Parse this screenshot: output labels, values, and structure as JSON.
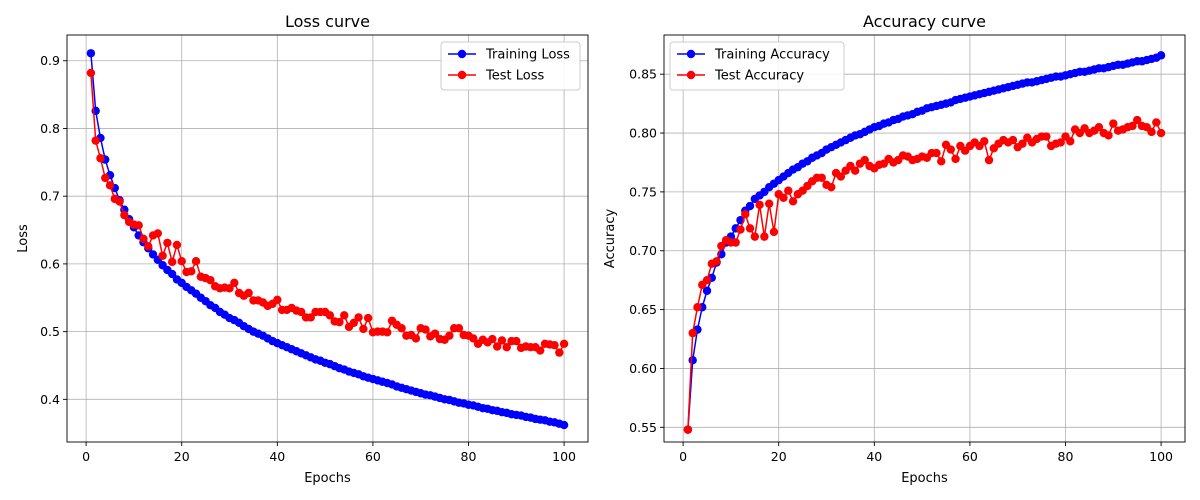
{
  "chart_data": [
    {
      "type": "line",
      "title": "Loss curve",
      "xlabel": "Epochs",
      "ylabel": "Loss",
      "xlim": [
        -4,
        105
      ],
      "ylim": [
        0.337,
        0.938
      ],
      "xticks": [
        0,
        20,
        40,
        60,
        80,
        100
      ],
      "yticks": [
        0.4,
        0.5,
        0.6,
        0.7,
        0.8,
        0.9
      ],
      "ytick_decimals": 1,
      "grid": true,
      "legend": "top-right",
      "x": [
        1,
        2,
        3,
        4,
        5,
        6,
        7,
        8,
        9,
        10,
        11,
        12,
        13,
        14,
        15,
        16,
        17,
        18,
        19,
        20,
        21,
        22,
        23,
        24,
        25,
        26,
        27,
        28,
        29,
        30,
        31,
        32,
        33,
        34,
        35,
        36,
        37,
        38,
        39,
        40,
        41,
        42,
        43,
        44,
        45,
        46,
        47,
        48,
        49,
        50,
        51,
        52,
        53,
        54,
        55,
        56,
        57,
        58,
        59,
        60,
        61,
        62,
        63,
        64,
        65,
        66,
        67,
        68,
        69,
        70,
        71,
        72,
        73,
        74,
        75,
        76,
        77,
        78,
        79,
        80,
        81,
        82,
        83,
        84,
        85,
        86,
        87,
        88,
        89,
        90,
        91,
        92,
        93,
        94,
        95,
        96,
        97,
        98,
        99,
        100
      ],
      "series": [
        {
          "name": "Training Loss",
          "color": "#0000ff",
          "values": [
            0.911,
            0.826,
            0.786,
            0.754,
            0.731,
            0.712,
            0.694,
            0.68,
            0.666,
            0.654,
            0.642,
            0.632,
            0.623,
            0.614,
            0.606,
            0.598,
            0.591,
            0.585,
            0.577,
            0.572,
            0.566,
            0.561,
            0.556,
            0.55,
            0.545,
            0.539,
            0.535,
            0.529,
            0.525,
            0.52,
            0.517,
            0.513,
            0.508,
            0.504,
            0.5,
            0.497,
            0.494,
            0.49,
            0.486,
            0.483,
            0.48,
            0.477,
            0.474,
            0.471,
            0.468,
            0.465,
            0.462,
            0.459,
            0.457,
            0.454,
            0.452,
            0.449,
            0.446,
            0.444,
            0.441,
            0.439,
            0.437,
            0.434,
            0.432,
            0.43,
            0.428,
            0.426,
            0.424,
            0.422,
            0.419,
            0.417,
            0.415,
            0.413,
            0.411,
            0.409,
            0.407,
            0.406,
            0.404,
            0.402,
            0.4,
            0.399,
            0.397,
            0.395,
            0.394,
            0.392,
            0.391,
            0.389,
            0.387,
            0.386,
            0.384,
            0.383,
            0.381,
            0.38,
            0.378,
            0.377,
            0.376,
            0.374,
            0.373,
            0.371,
            0.37,
            0.369,
            0.367,
            0.366,
            0.364,
            0.362
          ]
        },
        {
          "name": "Test Loss",
          "color": "#ff0000",
          "values": [
            0.882,
            0.782,
            0.756,
            0.727,
            0.716,
            0.696,
            0.692,
            0.672,
            0.662,
            0.658,
            0.657,
            0.637,
            0.626,
            0.642,
            0.645,
            0.612,
            0.631,
            0.603,
            0.628,
            0.604,
            0.588,
            0.589,
            0.604,
            0.581,
            0.579,
            0.576,
            0.567,
            0.564,
            0.565,
            0.564,
            0.572,
            0.557,
            0.553,
            0.557,
            0.546,
            0.546,
            0.543,
            0.538,
            0.541,
            0.547,
            0.532,
            0.532,
            0.535,
            0.531,
            0.529,
            0.521,
            0.521,
            0.529,
            0.529,
            0.529,
            0.524,
            0.515,
            0.514,
            0.524,
            0.507,
            0.513,
            0.521,
            0.504,
            0.52,
            0.499,
            0.5,
            0.5,
            0.499,
            0.516,
            0.51,
            0.505,
            0.494,
            0.495,
            0.49,
            0.505,
            0.503,
            0.493,
            0.497,
            0.489,
            0.488,
            0.494,
            0.505,
            0.505,
            0.495,
            0.494,
            0.49,
            0.482,
            0.488,
            0.484,
            0.489,
            0.478,
            0.487,
            0.477,
            0.486,
            0.486,
            0.476,
            0.478,
            0.477,
            0.477,
            0.472,
            0.482,
            0.481,
            0.48,
            0.469,
            0.482
          ]
        }
      ]
    },
    {
      "type": "line",
      "title": "Accuracy curve",
      "xlabel": "Epochs",
      "ylabel": "Accuracy",
      "xlim": [
        -4,
        105
      ],
      "ylim": [
        0.5375,
        0.8833
      ],
      "xticks": [
        0,
        20,
        40,
        60,
        80,
        100
      ],
      "yticks": [
        0.55,
        0.6,
        0.65,
        0.7,
        0.75,
        0.8,
        0.85
      ],
      "ytick_decimals": 2,
      "grid": true,
      "legend": "top-left",
      "x": [
        1,
        2,
        3,
        4,
        5,
        6,
        7,
        8,
        9,
        10,
        11,
        12,
        13,
        14,
        15,
        16,
        17,
        18,
        19,
        20,
        21,
        22,
        23,
        24,
        25,
        26,
        27,
        28,
        29,
        30,
        31,
        32,
        33,
        34,
        35,
        36,
        37,
        38,
        39,
        40,
        41,
        42,
        43,
        44,
        45,
        46,
        47,
        48,
        49,
        50,
        51,
        52,
        53,
        54,
        55,
        56,
        57,
        58,
        59,
        60,
        61,
        62,
        63,
        64,
        65,
        66,
        67,
        68,
        69,
        70,
        71,
        72,
        73,
        74,
        75,
        76,
        77,
        78,
        79,
        80,
        81,
        82,
        83,
        84,
        85,
        86,
        87,
        88,
        89,
        90,
        91,
        92,
        93,
        94,
        95,
        96,
        97,
        98,
        99,
        100
      ],
      "series": [
        {
          "name": "Training Accuracy",
          "color": "#0000ff",
          "values": [
            0.548,
            0.607,
            0.633,
            0.652,
            0.666,
            0.677,
            0.69,
            0.697,
            0.707,
            0.712,
            0.719,
            0.726,
            0.734,
            0.738,
            0.744,
            0.747,
            0.75,
            0.754,
            0.757,
            0.76,
            0.763,
            0.766,
            0.769,
            0.771,
            0.774,
            0.776,
            0.779,
            0.781,
            0.783,
            0.786,
            0.788,
            0.79,
            0.792,
            0.794,
            0.796,
            0.798,
            0.799,
            0.801,
            0.803,
            0.805,
            0.806,
            0.808,
            0.809,
            0.811,
            0.812,
            0.814,
            0.815,
            0.816,
            0.818,
            0.819,
            0.821,
            0.822,
            0.823,
            0.824,
            0.825,
            0.826,
            0.828,
            0.829,
            0.83,
            0.831,
            0.832,
            0.833,
            0.834,
            0.835,
            0.836,
            0.837,
            0.838,
            0.839,
            0.84,
            0.841,
            0.842,
            0.843,
            0.843,
            0.844,
            0.845,
            0.846,
            0.847,
            0.848,
            0.848,
            0.849,
            0.85,
            0.851,
            0.852,
            0.852,
            0.853,
            0.854,
            0.855,
            0.855,
            0.856,
            0.857,
            0.858,
            0.858,
            0.859,
            0.86,
            0.861,
            0.861,
            0.862,
            0.863,
            0.864,
            0.866
          ]
        },
        {
          "name": "Test Accuracy",
          "color": "#ff0000",
          "values": [
            0.548,
            0.63,
            0.652,
            0.671,
            0.675,
            0.689,
            0.691,
            0.704,
            0.709,
            0.707,
            0.707,
            0.718,
            0.731,
            0.719,
            0.712,
            0.739,
            0.712,
            0.74,
            0.716,
            0.748,
            0.745,
            0.751,
            0.742,
            0.748,
            0.751,
            0.755,
            0.759,
            0.762,
            0.762,
            0.756,
            0.754,
            0.766,
            0.763,
            0.768,
            0.772,
            0.768,
            0.774,
            0.777,
            0.772,
            0.77,
            0.773,
            0.774,
            0.778,
            0.775,
            0.777,
            0.781,
            0.78,
            0.777,
            0.778,
            0.78,
            0.779,
            0.783,
            0.783,
            0.776,
            0.79,
            0.786,
            0.778,
            0.789,
            0.785,
            0.789,
            0.792,
            0.789,
            0.793,
            0.777,
            0.787,
            0.791,
            0.794,
            0.792,
            0.794,
            0.788,
            0.791,
            0.796,
            0.792,
            0.795,
            0.797,
            0.797,
            0.789,
            0.791,
            0.792,
            0.797,
            0.793,
            0.803,
            0.8,
            0.804,
            0.8,
            0.802,
            0.805,
            0.8,
            0.798,
            0.808,
            0.802,
            0.803,
            0.805,
            0.806,
            0.811,
            0.806,
            0.805,
            0.801,
            0.809,
            0.8
          ]
        }
      ]
    }
  ]
}
